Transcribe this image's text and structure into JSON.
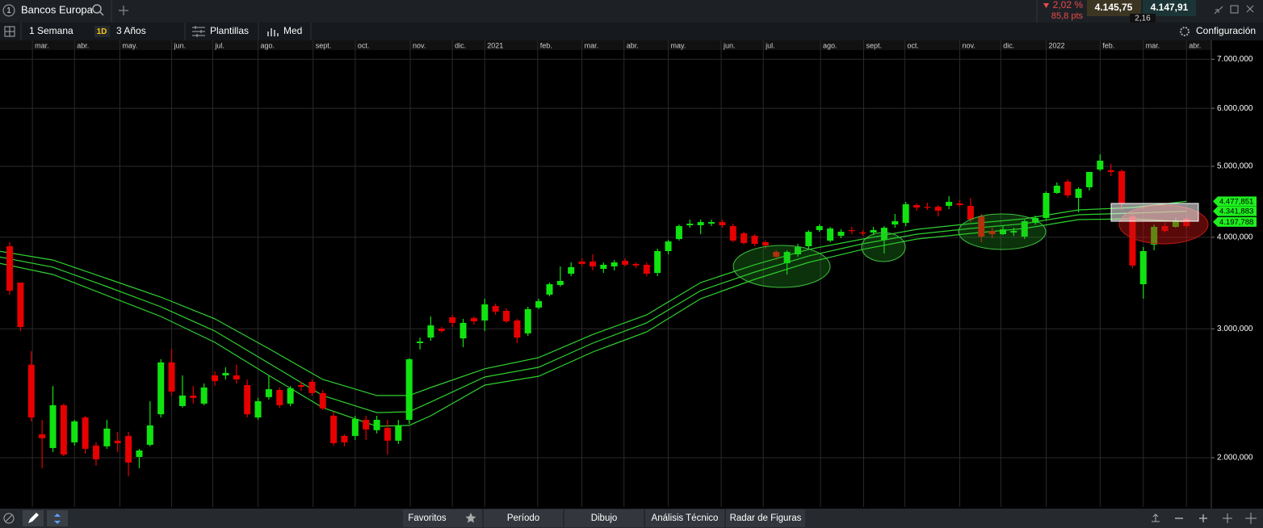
{
  "header": {
    "index": "1",
    "instrument": "Bancos Europa",
    "change_pct": "2,02 %",
    "change_pts": "85,8 pts",
    "sell": "4.145,75",
    "spread": "2,16",
    "buy": "4.147,91"
  },
  "toolbar": {
    "interval": "1 Semana",
    "timeframe_badge": "1D",
    "range": "3 Años",
    "templates": "Plantillas",
    "indicators": "Med",
    "settings": "Configuración"
  },
  "bottom_bar": {
    "tabs": [
      "Favoritos",
      "Período",
      "Dibujo",
      "Análisis Técnico",
      "Radar de Figuras"
    ]
  },
  "chart_data": {
    "type": "candlestick",
    "log_scale": true,
    "grid": true,
    "up_color": "#11e311",
    "down_color": "#e60000",
    "xlim": [
      0.1,
      112.3
    ],
    "xticks": [
      {
        "value": 3.1,
        "label": "mar."
      },
      {
        "value": 7.0,
        "label": "abr."
      },
      {
        "value": 11.2,
        "label": "may."
      },
      {
        "value": 16.0,
        "label": "jun."
      },
      {
        "value": 19.8,
        "label": "jul."
      },
      {
        "value": 24.0,
        "label": "ago."
      },
      {
        "value": 29.1,
        "label": "sept."
      },
      {
        "value": 33.0,
        "label": "oct."
      },
      {
        "value": 38.1,
        "label": "nov."
      },
      {
        "value": 42.0,
        "label": "dic."
      },
      {
        "value": 45.0,
        "label": "2021"
      },
      {
        "value": 49.9,
        "label": "feb."
      },
      {
        "value": 54.0,
        "label": "mar."
      },
      {
        "value": 57.9,
        "label": "abr."
      },
      {
        "value": 62.0,
        "label": "may."
      },
      {
        "value": 66.9,
        "label": "jun."
      },
      {
        "value": 70.8,
        "label": "jul."
      },
      {
        "value": 76.1,
        "label": "ago."
      },
      {
        "value": 80.1,
        "label": "sept."
      },
      {
        "value": 83.9,
        "label": "oct."
      },
      {
        "value": 89.0,
        "label": "nov."
      },
      {
        "value": 92.8,
        "label": "dic."
      },
      {
        "value": 97.0,
        "label": "2022"
      },
      {
        "value": 102.0,
        "label": "feb."
      },
      {
        "value": 106.0,
        "label": "mar."
      },
      {
        "value": 110.0,
        "label": "abr."
      }
    ],
    "ylim": [
      1713,
      7391
    ],
    "yticks": [
      {
        "value": 2000,
        "label": "2.000,000"
      },
      {
        "value": 3000,
        "label": "3.000,000"
      },
      {
        "value": 4000,
        "label": "4.000,000"
      },
      {
        "value": 5000,
        "label": "5.000,000"
      },
      {
        "value": 6000,
        "label": "6.000,000"
      },
      {
        "value": 7000,
        "label": "7.000,000"
      }
    ],
    "x": [
      1,
      2,
      3,
      4,
      5,
      6,
      7,
      8,
      9,
      10,
      11,
      12,
      13,
      14,
      15,
      16,
      17,
      18,
      19,
      20,
      21,
      22,
      23,
      24,
      25,
      26,
      27,
      28,
      29,
      30,
      31,
      32,
      33,
      34,
      35,
      36,
      37,
      38,
      39,
      40,
      41,
      42,
      43,
      44,
      45,
      46,
      47,
      48,
      49,
      50,
      51,
      52,
      53,
      54,
      55,
      56,
      57,
      58,
      59,
      60,
      61,
      62,
      63,
      64,
      65,
      66,
      67,
      68,
      69,
      70,
      71,
      72,
      73,
      74,
      75,
      76,
      77,
      78,
      79,
      80,
      81,
      82,
      83,
      84,
      85,
      86,
      87,
      88,
      89,
      90,
      91,
      92,
      93,
      94,
      95,
      96,
      97,
      98,
      99,
      100,
      101,
      102,
      103,
      104,
      105,
      106,
      107,
      108,
      109,
      110
    ],
    "open": [
      3889,
      3469,
      2679,
      2153,
      2062,
      2359,
      2099,
      2270,
      2078,
      2073,
      2110,
      2142,
      2005,
      2083,
      2293,
      2699,
      2353,
      2432,
      2371,
      2591,
      2591,
      2591,
      2513,
      2270,
      2420,
      2475,
      2371,
      2513,
      2539,
      2451,
      2282,
      2142,
      2142,
      2253,
      2181,
      2197,
      2110,
      2253,
      2868,
      2918,
      3002,
      3110,
      2911,
      3103,
      3079,
      3223,
      3174,
      3079,
      2957,
      3207,
      3340,
      3443,
      3567,
      3706,
      3706,
      3622,
      3650,
      3715,
      3678,
      3669,
      3576,
      3830,
      3978,
      4154,
      4154,
      4175,
      4196,
      4143,
      4049,
      4018,
      3938,
      3820,
      3687,
      3791,
      3889,
      4091,
      3958,
      4018,
      4091,
      4060,
      4060,
      3968,
      4164,
      4185,
      4426,
      4403,
      4403,
      4415,
      4448,
      4415,
      4271,
      4080,
      4039,
      4060,
      4008,
      4185,
      4250,
      4598,
      4765,
      4528,
      4681,
      4950,
      4937,
      4925,
      4271,
      3451,
      3909,
      4143,
      4133,
      4239
    ],
    "high": [
      3938,
      3469,
      2796,
      2253,
      2506,
      2371,
      2253,
      2282,
      2099,
      2253,
      2170,
      2170,
      2057,
      2389,
      2726,
      2817,
      2591,
      2506,
      2526,
      2624,
      2658,
      2679,
      2558,
      2414,
      2591,
      2494,
      2506,
      2539,
      2558,
      2475,
      2311,
      2153,
      2282,
      2282,
      2282,
      2253,
      2253,
      2734,
      2918,
      3118,
      3017,
      3134,
      3095,
      3118,
      3297,
      3247,
      3199,
      3095,
      3215,
      3297,
      3469,
      3650,
      3696,
      3743,
      3791,
      3696,
      3724,
      3743,
      3696,
      3696,
      3860,
      3968,
      4164,
      4228,
      4228,
      4228,
      4228,
      4175,
      4070,
      4039,
      3958,
      3840,
      3840,
      3918,
      4091,
      4164,
      4133,
      4101,
      4133,
      4091,
      4133,
      4143,
      4304,
      4471,
      4448,
      4459,
      4426,
      4551,
      4494,
      4528,
      4304,
      4122,
      4143,
      4122,
      4228,
      4282,
      4621,
      4753,
      4801,
      4681,
      4912,
      5192,
      5038,
      4950,
      4304,
      3879,
      4164,
      4185,
      4250,
      4261
    ],
    "low": [
      3340,
      2979,
      2242,
      1935,
      2036,
      2010,
      2078,
      2026,
      1950,
      2057,
      2036,
      1887,
      1935,
      2073,
      2270,
      2432,
      2341,
      2371,
      2359,
      2506,
      2558,
      2526,
      2270,
      2253,
      2402,
      2341,
      2353,
      2469,
      2432,
      2323,
      2078,
      2073,
      2115,
      2115,
      2159,
      2020,
      2088,
      2225,
      2811,
      2889,
      2964,
      3017,
      2832,
      3040,
      2979,
      3134,
      3056,
      2868,
      2934,
      3191,
      3323,
      3425,
      3540,
      3650,
      3604,
      3576,
      3604,
      3650,
      3631,
      3540,
      3540,
      3791,
      3958,
      4122,
      4039,
      4143,
      4122,
      3938,
      3909,
      3889,
      3860,
      3724,
      3558,
      3762,
      3860,
      4070,
      3938,
      3988,
      4039,
      4018,
      4028,
      3801,
      4122,
      4143,
      4348,
      4359,
      4271,
      4370,
      4403,
      4196,
      3938,
      3988,
      4028,
      4018,
      3978,
      4164,
      4228,
      4586,
      4528,
      4326,
      4633,
      4925,
      4849,
      4359,
      3631,
      3297,
      3840,
      4060,
      4122,
      4122
    ],
    "close": [
      3382,
      3017,
      2270,
      2126,
      2359,
      2020,
      2242,
      2057,
      1990,
      2192,
      2094,
      1970,
      2046,
      2214,
      2699,
      2463,
      2432,
      2414,
      2494,
      2545,
      2611,
      2558,
      2293,
      2389,
      2481,
      2359,
      2488,
      2500,
      2451,
      2335,
      2094,
      2099,
      2259,
      2186,
      2253,
      2110,
      2214,
      2726,
      2882,
      3032,
      2979,
      3056,
      3056,
      3071,
      3239,
      3166,
      3071,
      2918,
      3191,
      3272,
      3451,
      3487,
      3641,
      3678,
      3650,
      3669,
      3696,
      3669,
      3660,
      3567,
      3830,
      3948,
      4143,
      4175,
      4196,
      4196,
      4154,
      3958,
      3928,
      3918,
      3899,
      3762,
      3820,
      3879,
      4070,
      4143,
      4112,
      4070,
      4080,
      4049,
      4091,
      4122,
      4207,
      4437,
      4392,
      4392,
      4348,
      4471,
      4426,
      4228,
      4008,
      4039,
      4101,
      4080,
      4207,
      4250,
      4598,
      4704,
      4563,
      4657,
      4912,
      5089,
      4912,
      4448,
      3660,
      3830,
      4133,
      4080,
      4217,
      4143
    ],
    "lines": [
      {
        "color": "#2fd12f",
        "x": [
          0,
          5,
          10,
          15,
          20,
          25,
          30,
          35,
          38,
          40,
          45,
          50,
          55,
          60,
          65,
          70,
          75,
          80,
          85,
          90,
          95,
          100,
          105,
          110
        ],
        "values": [
          3830,
          3724,
          3513,
          3314,
          3095,
          2818,
          2558,
          2432,
          2432,
          2494,
          2645,
          2740,
          2947,
          3134,
          3469,
          3669,
          3850,
          3978,
          4101,
          4175,
          4239,
          4359,
          4392,
          4477.851
        ],
        "end_label": "4.477,851"
      },
      {
        "color": "#2fd12f",
        "x": [
          0,
          5,
          10,
          15,
          20,
          25,
          30,
          35,
          38,
          40,
          45,
          50,
          55,
          60,
          65,
          70,
          75,
          80,
          85,
          90,
          95,
          100,
          105,
          110
        ],
        "values": [
          3762,
          3641,
          3425,
          3215,
          2979,
          2692,
          2432,
          2305,
          2311,
          2383,
          2578,
          2658,
          2868,
          3056,
          3382,
          3585,
          3771,
          3918,
          4039,
          4112,
          4175,
          4293,
          4315,
          4341.883
        ],
        "end_label": "4.341,883"
      },
      {
        "color": "#2fd12f",
        "x": [
          0,
          5,
          10,
          15,
          20,
          25,
          30,
          35,
          38,
          40,
          45,
          50,
          55,
          60,
          65,
          70,
          75,
          80,
          85,
          90,
          95,
          100,
          105,
          110
        ],
        "values": [
          3687,
          3558,
          3331,
          3118,
          2875,
          2591,
          2341,
          2208,
          2214,
          2282,
          2513,
          2584,
          2789,
          2971,
          3297,
          3504,
          3696,
          3850,
          3978,
          4049,
          4112,
          4228,
          4239,
          4197.788
        ],
        "end_label": "4.197,788"
      }
    ]
  }
}
